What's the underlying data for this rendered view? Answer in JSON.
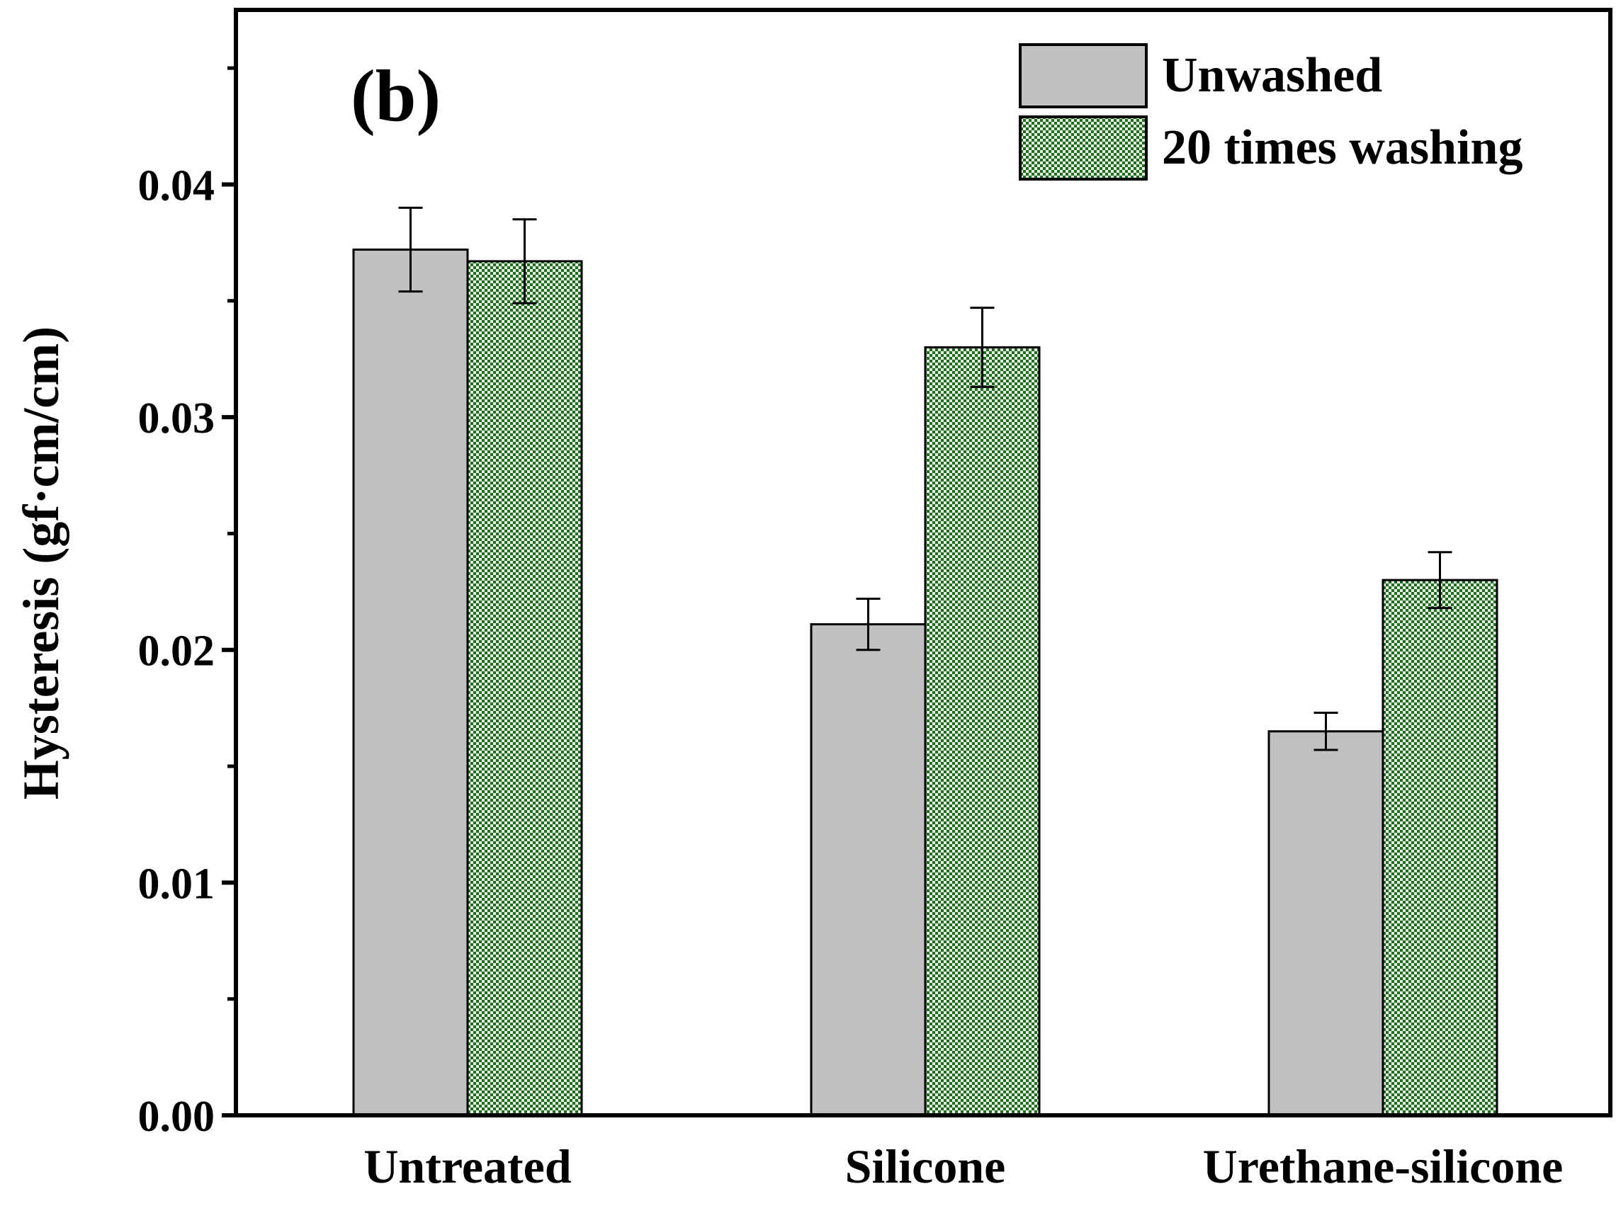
{
  "chart_data": {
    "type": "bar",
    "panel_label": "(b)",
    "title": "",
    "xlabel": "",
    "ylabel": "Hysteresis (gf·cm/cm)",
    "categories": [
      "Untreated",
      "Silicone",
      "Urethane-silicone"
    ],
    "ylim": [
      0,
      0.0475
    ],
    "yticks": [
      0.0,
      0.01,
      0.02,
      0.03,
      0.04
    ],
    "ytick_labels": [
      "0.00",
      "0.01",
      "0.02",
      "0.03",
      "0.04"
    ],
    "legend_position": "top-right",
    "series": [
      {
        "name": "Unwashed",
        "values": [
          0.0372,
          0.0211,
          0.0165
        ],
        "errors": [
          0.0018,
          0.0011,
          0.0008
        ],
        "color": "#c0c0c0",
        "pattern": "solid"
      },
      {
        "name": "20 times washing",
        "values": [
          0.0367,
          0.033,
          0.023
        ],
        "errors": [
          0.0018,
          0.0017,
          0.0012
        ],
        "color": "#1e6b1e",
        "pattern": "checkered"
      }
    ]
  }
}
